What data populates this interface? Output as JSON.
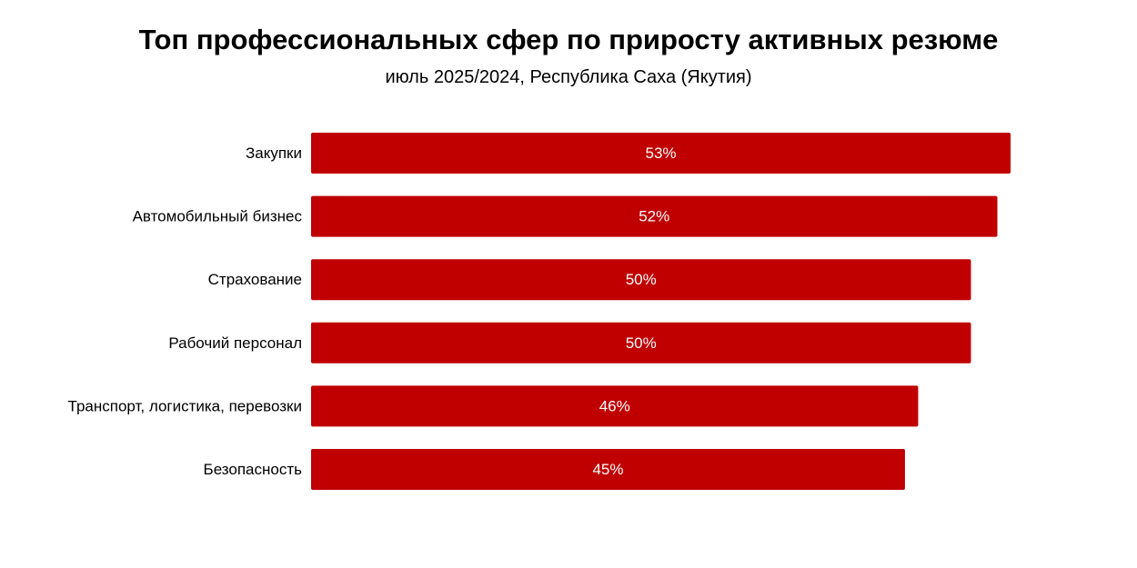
{
  "chart_data": {
    "type": "bar",
    "orientation": "horizontal",
    "title": "Топ профессиональных сфер по приросту активных резюме",
    "subtitle": "июль 2025/2024, Республика Саха (Якутия)",
    "categories": [
      "Закупки",
      "Автомобильный бизнес",
      "Страхование",
      "Рабочий персонал",
      "Транспорт, логистика, перевозки",
      "Безопасность"
    ],
    "values": [
      53,
      52,
      50,
      50,
      46,
      45
    ],
    "value_labels": [
      "53%",
      "52%",
      "50%",
      "50%",
      "46%",
      "45%"
    ],
    "unit": "%",
    "bar_color": "#c00000",
    "label_color": "#ffffff",
    "grid": false,
    "legend": "none"
  }
}
